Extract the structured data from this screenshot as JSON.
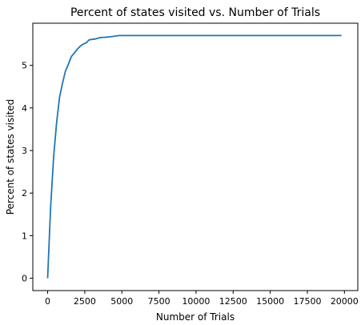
{
  "chart_data": {
    "type": "line",
    "title": "Percent of states visited vs. Number of Trials",
    "xlabel": "Number of Trials",
    "ylabel": "Percent of states visited",
    "xlim": [
      -1000,
      20900
    ],
    "ylim": [
      -0.29,
      5.99
    ],
    "xticks": [
      0,
      2500,
      5000,
      7500,
      10000,
      12500,
      15000,
      17500,
      20000
    ],
    "yticks": [
      0,
      1,
      2,
      3,
      4,
      5
    ],
    "grid": false,
    "line_color": "#1f77b4",
    "series": [
      {
        "x": [
          0,
          200,
          400,
          600,
          800,
          1000,
          1200,
          1400,
          1600,
          1800,
          2000,
          2200,
          2400,
          2600,
          2800,
          3000,
          3200,
          3400,
          3600,
          3800,
          4000,
          4200,
          4400,
          4600,
          4800,
          5000,
          6000,
          8000,
          10000,
          12000,
          14000,
          16000,
          18000,
          19800
        ],
        "y": [
          0,
          1.65,
          2.85,
          3.65,
          4.25,
          4.58,
          4.87,
          5.03,
          5.21,
          5.29,
          5.38,
          5.45,
          5.5,
          5.53,
          5.6,
          5.61,
          5.62,
          5.64,
          5.655,
          5.66,
          5.665,
          5.67,
          5.68,
          5.69,
          5.7,
          5.7,
          5.7,
          5.7,
          5.7,
          5.7,
          5.7,
          5.7,
          5.7,
          5.7
        ]
      }
    ]
  }
}
